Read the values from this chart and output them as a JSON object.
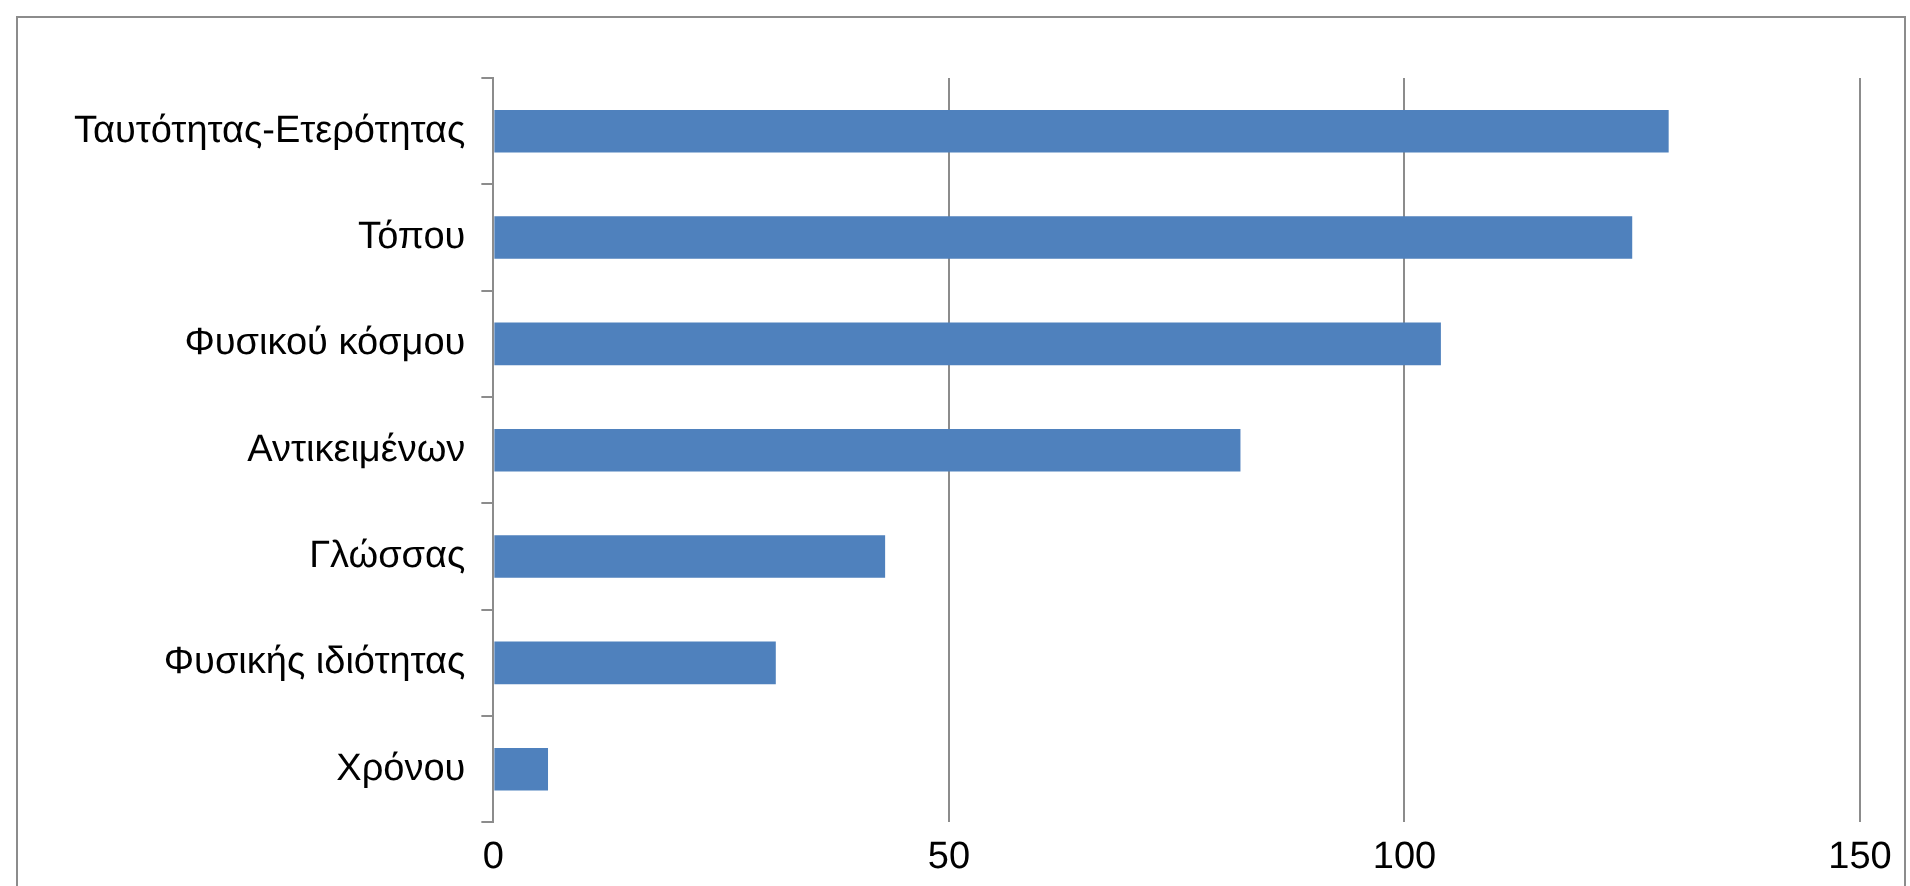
{
  "chart_data": {
    "type": "bar",
    "orientation": "horizontal",
    "categories": [
      "Ταυτότητας-Ετερότητας",
      "Τόπου",
      "Φυσικού κόσμου",
      "Αντικειμένων",
      "Γλώσσας",
      "Φυσικής ιδιότητας",
      "Χρόνου"
    ],
    "values": [
      129,
      125,
      104,
      82,
      43,
      31,
      6
    ],
    "color": "#4f81bd",
    "xlim": [
      0,
      150
    ],
    "xticks": [
      0,
      50,
      100,
      150
    ],
    "grid": "x",
    "legend": false
  }
}
